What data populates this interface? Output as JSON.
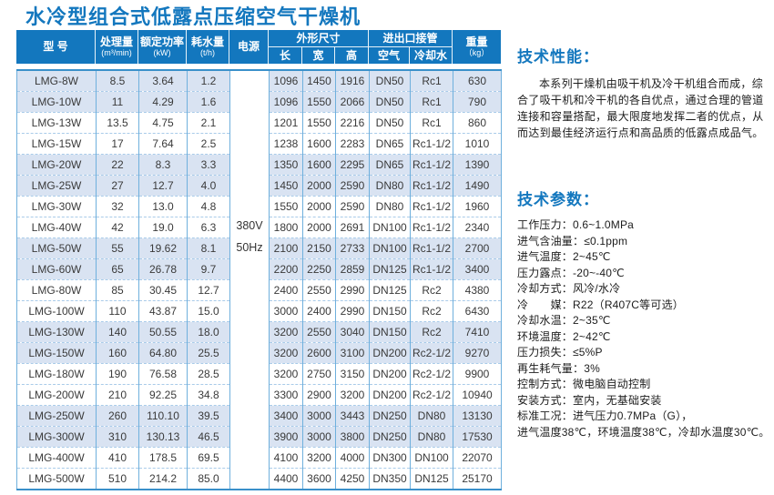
{
  "title": "水冷型组合式低露点压缩空气干燥机",
  "colors": {
    "header_blue": "#1377be",
    "title_blue": "#1377be",
    "row_tint": "#d9e3f2",
    "grid_line": "#6fb0dd",
    "dash_line": "#a9cbe9"
  },
  "table": {
    "header": {
      "model": "型 号",
      "capacity": "处理量",
      "capacity_unit": "(m³/min)",
      "rated_power": "额定功率",
      "rated_power_unit": "(kW)",
      "water_consumption": "耗水量",
      "water_consumption_unit": "(t/h)",
      "power_supply": "电源",
      "dimensions_group": "外形尺寸",
      "dim_length": "长",
      "dim_width": "宽",
      "dim_height": "高",
      "connections_group": "进出口接管",
      "conn_air": "空气",
      "conn_cooling_water": "冷却水",
      "weight": "重量",
      "weight_unit": "（kg）"
    },
    "power_supply_value": [
      "380V",
      "50Hz"
    ],
    "rows": [
      [
        "LMG-8W",
        "8.5",
        "3.64",
        "1.2",
        "1096",
        "1450",
        "1916",
        "DN50",
        "Rc1",
        "630"
      ],
      [
        "LMG-10W",
        "11",
        "4.29",
        "1.6",
        "1096",
        "1550",
        "2066",
        "DN50",
        "Rc1",
        "790"
      ],
      [
        "LMG-13W",
        "13.5",
        "4.75",
        "2.1",
        "1201",
        "1550",
        "2216",
        "DN50",
        "Rc1",
        "860"
      ],
      [
        "LMG-15W",
        "17",
        "7.64",
        "2.5",
        "1238",
        "1600",
        "2283",
        "DN65",
        "Rc1-1/2",
        "1010"
      ],
      [
        "LMG-20W",
        "22",
        "8.3",
        "3.3",
        "1350",
        "1600",
        "2295",
        "DN65",
        "Rc1-1/2",
        "1390"
      ],
      [
        "LMG-25W",
        "27",
        "12.7",
        "4.0",
        "1450",
        "2000",
        "2590",
        "DN80",
        "Rc1-1/2",
        "1490"
      ],
      [
        "LMG-30W",
        "32",
        "13.0",
        "4.8",
        "1550",
        "2000",
        "2590",
        "DN80",
        "Rc1-1/2",
        "1960"
      ],
      [
        "LMG-40W",
        "42",
        "19.0",
        "6.3",
        "1800",
        "2000",
        "2691",
        "DN100",
        "Rc1-1/2",
        "2340"
      ],
      [
        "LMG-50W",
        "55",
        "19.62",
        "8.1",
        "2100",
        "2150",
        "2733",
        "DN100",
        "Rc1-1/2",
        "2700"
      ],
      [
        "LMG-60W",
        "65",
        "26.78",
        "9.7",
        "2200",
        "2250",
        "2859",
        "DN125",
        "Rc1-1/2",
        "3400"
      ],
      [
        "LMG-80W",
        "85",
        "30.45",
        "12.7",
        "2400",
        "2550",
        "2990",
        "DN125",
        "Rc2",
        "4380"
      ],
      [
        "LMG-100W",
        "110",
        "43.87",
        "15.0",
        "3000",
        "2400",
        "2990",
        "DN150",
        "Rc2",
        "6430"
      ],
      [
        "LMG-130W",
        "140",
        "50.55",
        "18.0",
        "3200",
        "2550",
        "3040",
        "DN150",
        "Rc2",
        "7410"
      ],
      [
        "LMG-150W",
        "160",
        "64.80",
        "25.5",
        "3200",
        "2600",
        "3100",
        "DN200",
        "Rc2-1/2",
        "9270"
      ],
      [
        "LMG-180W",
        "190",
        "76.58",
        "28.5",
        "3200",
        "2750",
        "3150",
        "DN200",
        "Rc2-1/2",
        "9900"
      ],
      [
        "LMG-200W",
        "210",
        "92.25",
        "34.8",
        "3300",
        "2900",
        "3200",
        "DN200",
        "Rc2-1/2",
        "10940"
      ],
      [
        "LMG-250W",
        "260",
        "110.10",
        "39.5",
        "3400",
        "3000",
        "3443",
        "DN250",
        "DN80",
        "13130"
      ],
      [
        "LMG-300W",
        "310",
        "130.13",
        "46.5",
        "3900",
        "3000",
        "3800",
        "DN250",
        "DN80",
        "17530"
      ],
      [
        "LMG-400W",
        "410",
        "178.5",
        "69.5",
        "4100",
        "3200",
        "4000",
        "DN300",
        "DN100",
        "22070"
      ],
      [
        "LMG-500W",
        "510",
        "214.2",
        "85.0",
        "4400",
        "3600",
        "4250",
        "DN350",
        "DN125",
        "25170"
      ]
    ]
  },
  "right_panel": {
    "performance_heading": "技术性能：",
    "performance_text": "本系列干燥机由吸干机及冷干机组合而成，综合了吸干机和冷干机的各自优点，通过合理的管道连接和容量搭配，最大限度地发挥二者的优点，从而达到最佳经济运行点和高品质的低露点成品气。",
    "parameters_heading": "技术参数：",
    "parameters": [
      "工作压力：0.6~1.0MPa",
      "进气含油量：≤0.1ppm",
      "进气温度：2~45℃",
      "压力露点：-20~-40℃",
      "冷却方式：风冷/水冷",
      "冷　　媒：R22（R407C等可选）",
      "冷却水温：2~35℃",
      "环境温度：2~42℃",
      "压力损失：≤5%P",
      "再生耗气量：3%",
      "控制方式：微电脑自动控制",
      "安装方式：室内，无基础安装",
      "标准工况：进气压力0.7MPa（G），",
      "进气温度38℃，环境温度38℃，冷却水温度30℃。"
    ]
  }
}
